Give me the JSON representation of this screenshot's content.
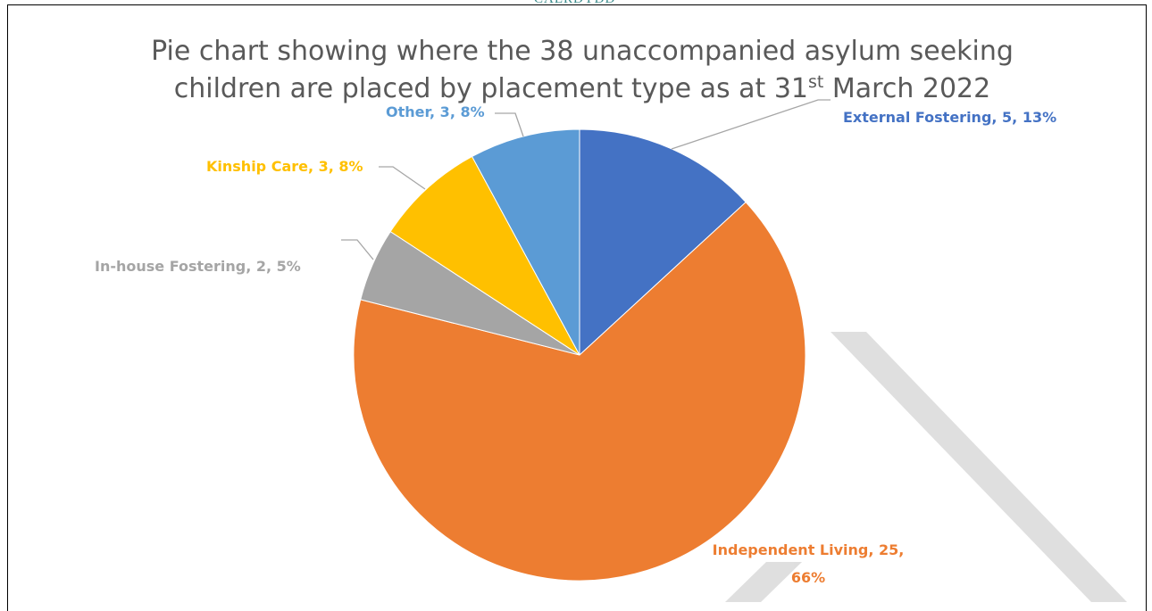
{
  "header_mark": "CAERDYDD",
  "chart_data": {
    "type": "pie",
    "title_line1": "Pie chart showing where the 38 unaccompanied asylum seeking",
    "title_line2_pre": "children are placed by placement type as at 31",
    "title_line2_sup": "st",
    "title_line2_post": " March 2022",
    "slices": [
      {
        "name": "External Fostering",
        "value": 5,
        "percent": "13%",
        "color": "#4472C4"
      },
      {
        "name": "Independent Living",
        "value": 25,
        "percent": "66%",
        "color": "#ED7D31"
      },
      {
        "name": "In-house Fostering",
        "value": 2,
        "percent": "5%",
        "color": "#A5A5A5"
      },
      {
        "name": "Kinship Care",
        "value": 3,
        "percent": "8%",
        "color": "#FFC000"
      },
      {
        "name": "Other",
        "value": 3,
        "percent": "8%",
        "color": "#5B9BD5"
      }
    ],
    "labels": {
      "external": "External Fostering, 5, 13%",
      "independent_line1": "Independent Living, 25,",
      "independent_line2": "66%",
      "inhouse": "In-house Fostering, 2, 5%",
      "kinship": "Kinship Care, 3, 8%",
      "other": "Other, 3, 8%"
    },
    "leader_line_color": "#A6A6A6"
  }
}
